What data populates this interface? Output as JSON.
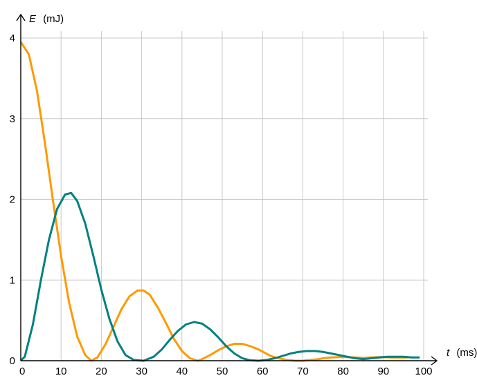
{
  "chart_data": {
    "type": "line",
    "x_axis": {
      "symbol": "t",
      "unit": "(ms)",
      "ticks": [
        "0",
        "10",
        "20",
        "30",
        "40",
        "50",
        "60",
        "70",
        "80",
        "90",
        "100"
      ],
      "range": [
        0,
        100
      ]
    },
    "y_axis": {
      "symbol": "E",
      "unit": "(mJ)",
      "ticks": [
        "0",
        "1",
        "2",
        "3",
        "4"
      ],
      "range": [
        0,
        4
      ]
    },
    "grid": true,
    "series": [
      {
        "color": "#ff9900",
        "x": [
          0,
          2,
          4,
          6,
          8,
          10,
          12,
          14,
          16,
          17.5,
          19,
          21,
          23,
          25,
          27,
          29,
          30.5,
          32,
          34,
          36,
          38,
          40,
          42,
          44,
          45,
          47,
          49,
          51,
          53,
          55,
          57,
          59,
          60.5,
          62,
          64,
          66,
          68,
          70,
          72,
          74,
          75,
          77,
          79,
          81,
          83,
          85,
          87,
          89,
          90,
          92,
          94,
          96
        ],
        "y": [
          3.95,
          3.8,
          3.35,
          2.7,
          1.98,
          1.3,
          0.72,
          0.3,
          0.07,
          0,
          0.04,
          0.2,
          0.42,
          0.64,
          0.8,
          0.87,
          0.87,
          0.82,
          0.66,
          0.47,
          0.27,
          0.12,
          0.03,
          0,
          0.02,
          0.07,
          0.13,
          0.18,
          0.21,
          0.21,
          0.18,
          0.14,
          0.1,
          0.06,
          0.03,
          0.01,
          0,
          0,
          0.01,
          0.02,
          0.03,
          0.04,
          0.045,
          0.045,
          0.04,
          0.035,
          0.04,
          0.045,
          0.045,
          0.04,
          0.04,
          0.04
        ]
      },
      {
        "color": "#008080",
        "x": [
          0,
          1,
          3,
          5,
          7,
          9,
          11,
          12.5,
          14,
          16,
          18,
          20,
          22,
          24,
          26,
          28,
          30.5,
          33,
          35,
          37,
          39,
          41,
          43,
          45,
          47,
          49,
          51,
          53,
          55,
          57,
          59,
          61,
          63,
          65,
          67,
          69,
          71,
          73,
          75,
          77,
          79,
          81,
          83,
          85,
          87,
          89,
          91,
          93,
          95,
          97,
          99
        ],
        "y": [
          0,
          0.05,
          0.45,
          1.0,
          1.5,
          1.88,
          2.06,
          2.08,
          1.98,
          1.7,
          1.3,
          0.88,
          0.52,
          0.24,
          0.07,
          0.01,
          0,
          0.05,
          0.14,
          0.26,
          0.37,
          0.45,
          0.48,
          0.46,
          0.39,
          0.29,
          0.18,
          0.09,
          0.03,
          0.005,
          0,
          0.01,
          0.03,
          0.06,
          0.09,
          0.11,
          0.12,
          0.12,
          0.11,
          0.09,
          0.07,
          0.05,
          0.03,
          0.02,
          0.03,
          0.04,
          0.05,
          0.05,
          0.05,
          0.04,
          0.04
        ]
      }
    ]
  }
}
